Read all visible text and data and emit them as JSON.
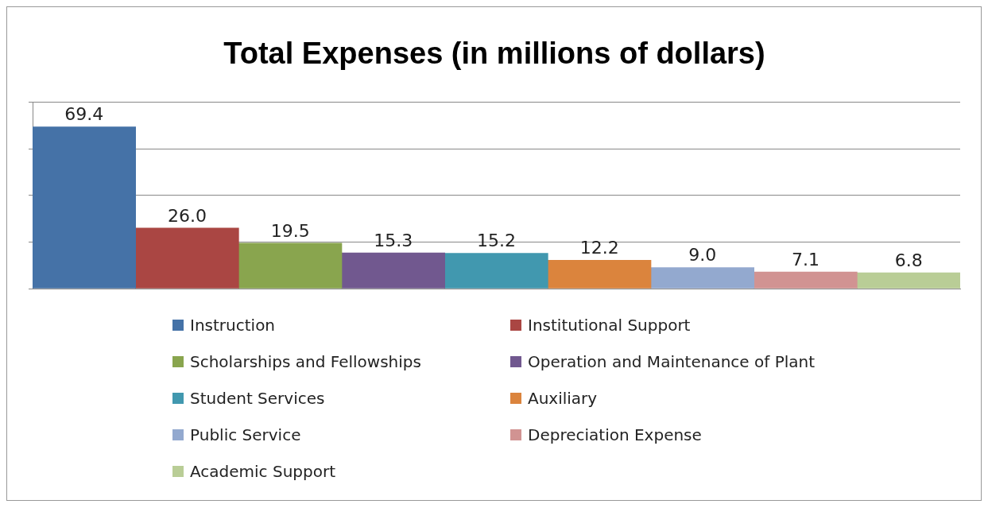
{
  "chart_data": {
    "type": "bar",
    "title": "Total Expenses (in millions of dollars)",
    "categories": [
      null
    ],
    "series": [
      {
        "name": "Instruction",
        "color": "#4572a7",
        "values": [
          69.4
        ],
        "value_labels": [
          "69.4"
        ]
      },
      {
        "name": "Institutional Support",
        "color": "#aa4643",
        "values": [
          26.0
        ],
        "value_labels": [
          "26.0"
        ]
      },
      {
        "name": "Scholarships and Fellowships",
        "color": "#89a54e",
        "values": [
          19.5
        ],
        "value_labels": [
          "19.5"
        ]
      },
      {
        "name": "Operation and Maintenance of Plant",
        "color": "#71588f",
        "values": [
          15.3
        ],
        "value_labels": [
          "15.3"
        ]
      },
      {
        "name": "Student Services",
        "color": "#4198af",
        "values": [
          15.2
        ],
        "value_labels": [
          "15.2"
        ]
      },
      {
        "name": "Auxiliary",
        "color": "#db843d",
        "values": [
          12.2
        ],
        "value_labels": [
          "12.2"
        ]
      },
      {
        "name": "Public Service",
        "color": "#93a9cf",
        "values": [
          9.0
        ],
        "value_labels": [
          "9.0"
        ]
      },
      {
        "name": "Depreciation Expense",
        "color": "#d19392",
        "values": [
          7.1
        ],
        "value_labels": [
          "7.1"
        ]
      },
      {
        "name": "Academic Support",
        "color": "#b9cd96",
        "values": [
          6.8
        ],
        "value_labels": [
          "6.8"
        ]
      }
    ],
    "ylim": [
      0,
      80
    ],
    "yticks": [
      0,
      20,
      40,
      60,
      80
    ],
    "grid": "y",
    "tick_labels": false,
    "legend": "bottom"
  }
}
